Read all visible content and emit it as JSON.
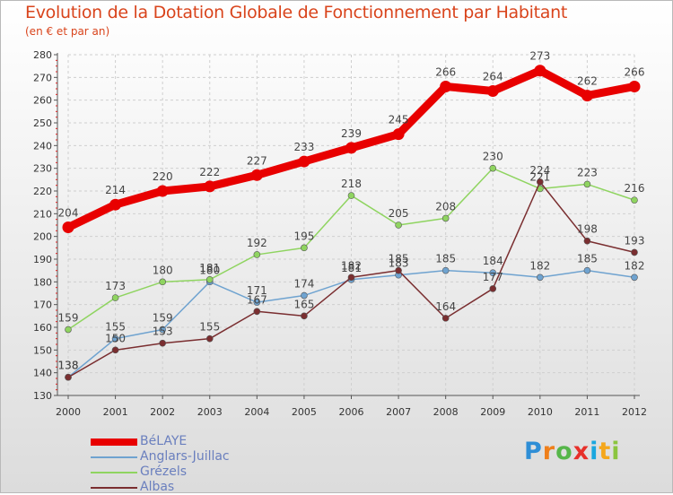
{
  "header": {
    "title": "Evolution de la Dotation Globale de Fonctionnement par Habitant",
    "subtitle": "(en € et par an)"
  },
  "logo": {
    "letters": [
      "P",
      "r",
      "o",
      "x",
      "i",
      "t",
      "i"
    ],
    "colors": [
      "#2e8ed6",
      "#ef7f1a",
      "#56b64a",
      "#e7302a",
      "#1aa7df",
      "#f5a71c",
      "#8bc53f"
    ]
  },
  "chart_data": {
    "type": "line",
    "title": "Evolution de la Dotation Globale de Fonctionnement par Habitant",
    "subtitle": "(en € et par an)",
    "xlabel": "",
    "ylabel": "",
    "x": [
      "2000",
      "2001",
      "2002",
      "2003",
      "2004",
      "2005",
      "2006",
      "2007",
      "2008",
      "2009",
      "2010",
      "2011",
      "2012"
    ],
    "ylim": [
      130,
      280
    ],
    "yticks": [
      130,
      140,
      150,
      160,
      170,
      180,
      190,
      200,
      210,
      220,
      230,
      240,
      250,
      260,
      270,
      280
    ],
    "grid": true,
    "legend_position": "bottom-left",
    "series": [
      {
        "name": "BéLAYE",
        "color": "#e80000",
        "values": [
          204,
          214,
          220,
          222,
          227,
          233,
          239,
          245,
          266,
          264,
          273,
          262,
          266
        ],
        "labels": [
          "204",
          "214",
          "220",
          "222",
          "227",
          "233",
          "239",
          "245",
          "266",
          "264",
          "273",
          "262",
          "266"
        ],
        "emphasis": true
      },
      {
        "name": "Anglars-Juillac",
        "color": "#6fa3d0",
        "values": [
          138,
          155,
          159,
          180,
          171,
          174,
          181,
          183,
          185,
          184,
          182,
          185,
          182
        ],
        "labels": [
          "138",
          "155",
          "159",
          "180",
          "171",
          "174",
          "181",
          "183",
          "185",
          "184",
          "182",
          "185",
          "182"
        ]
      },
      {
        "name": "Grézels",
        "color": "#8fd460",
        "values": [
          159,
          173,
          180,
          181,
          192,
          195,
          218,
          205,
          208,
          230,
          221,
          223,
          216
        ],
        "labels": [
          "159",
          "173",
          "180",
          "181",
          "192",
          "195",
          "218",
          "205",
          "208",
          "230",
          "221",
          "223",
          "216"
        ]
      },
      {
        "name": "Albas",
        "color": "#7a2e30",
        "values": [
          138,
          150,
          153,
          155,
          167,
          165,
          182,
          185,
          164,
          177,
          224,
          198,
          193
        ],
        "labels": [
          "138",
          "150",
          "153",
          "155",
          "167",
          "165",
          "182",
          "185",
          "164",
          "177",
          "224",
          "198",
          "193"
        ]
      }
    ]
  }
}
